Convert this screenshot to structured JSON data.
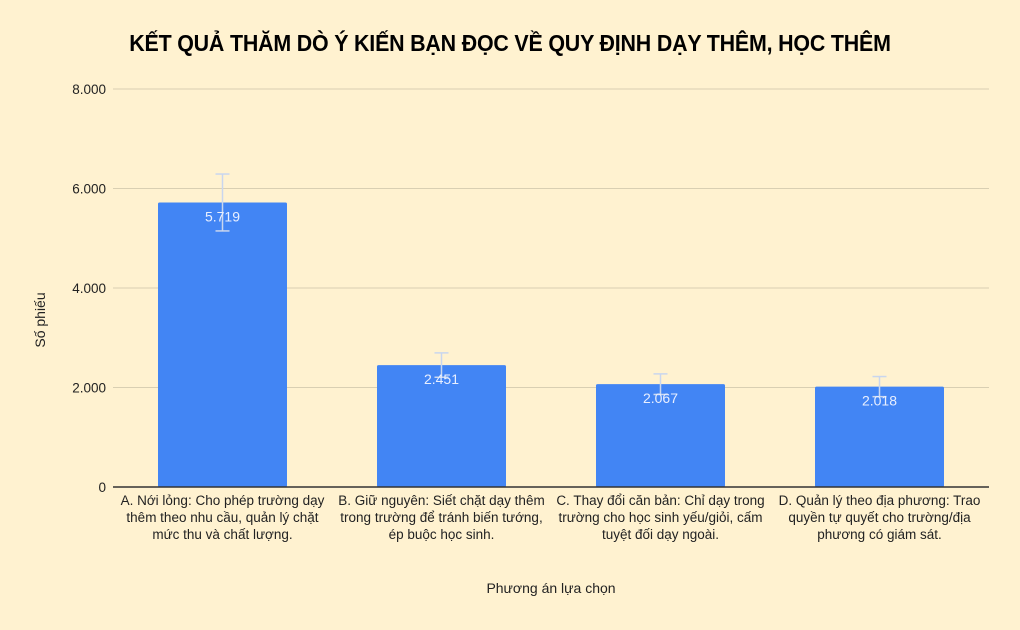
{
  "chart_data": {
    "type": "bar",
    "title": "KẾT QUẢ THĂM DÒ Ý KIẾN BẠN ĐỌC VỀ QUY ĐỊNH DẠY THÊM, HỌC THÊM",
    "xlabel": "Phương án lựa chọn",
    "ylabel": "Số phiếu",
    "ylim": [
      0,
      8000
    ],
    "yticks": [
      0,
      2000,
      4000,
      6000,
      8000
    ],
    "ytick_labels": [
      "0",
      "2.000",
      "4.000",
      "6.000",
      "8.000"
    ],
    "grid": true,
    "legend": "none",
    "bar_color": "#4285f4",
    "categories": [
      "A. Nới lỏng: Cho phép trường dạy thêm theo nhu cầu, quản lý chặt mức thu và chất lượng.",
      "B. Giữ nguyên: Siết chặt dạy thêm trong trường để tránh biến tướng, ép buộc học sinh.",
      "C. Thay đổi căn bản: Chỉ dạy trong trường cho học sinh yếu/giỏi, cấm tuyệt đối dạy ngoài.",
      "D. Quản lý theo địa phương: Trao quyền tự quyết cho trường/địa phương có giám sát."
    ],
    "values": [
      5719,
      2451,
      2067,
      2018
    ],
    "value_labels": [
      "5.719",
      "2.451",
      "2.067",
      "2.018"
    ],
    "error_bars": [
      572,
      245,
      207,
      202
    ]
  },
  "colors": {
    "background": "#fff2d0",
    "bar": "#4285f4",
    "error_bar": "#c9d6ee",
    "grid": "#d9cfb2",
    "axis": "#333333",
    "value_label": "#e8efff"
  }
}
